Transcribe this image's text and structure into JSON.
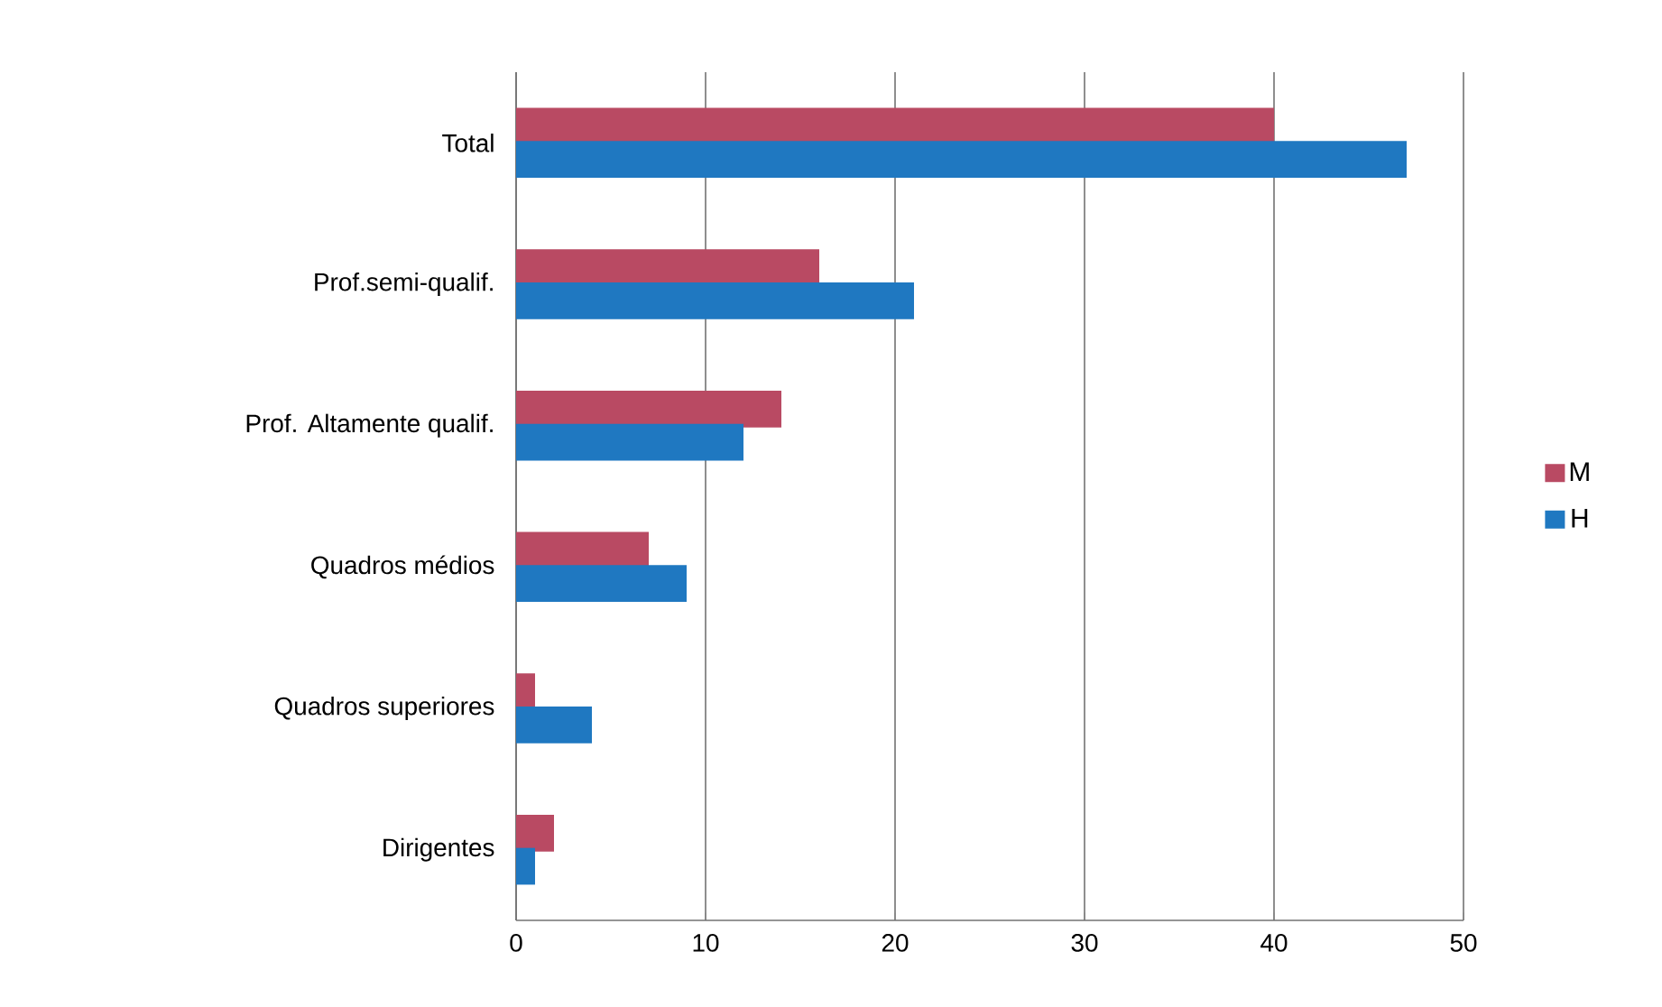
{
  "chart_data": {
    "type": "bar",
    "orientation": "horizontal",
    "categories": [
      "Total",
      "Prof.semi-qualif.",
      "Prof. Altamente qualif.",
      "Quadros médios",
      "Quadros superiores",
      "Dirigentes"
    ],
    "series": [
      {
        "name": "M",
        "color": "#b94a63",
        "values": [
          40,
          16,
          14,
          7,
          1,
          2
        ]
      },
      {
        "name": "H",
        "color": "#1f78c1",
        "values": [
          47,
          21,
          12,
          9,
          4,
          1
        ]
      }
    ],
    "xlim": [
      0,
      50
    ],
    "xticks": [
      0,
      10,
      20,
      30,
      40,
      50
    ],
    "grid": "x",
    "legend": "right"
  }
}
